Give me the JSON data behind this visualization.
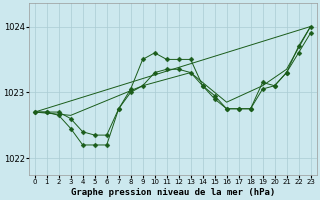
{
  "xlabel": "Graphe pression niveau de la mer (hPa)",
  "ylim": [
    1021.75,
    1024.35
  ],
  "xlim": [
    -0.5,
    23.5
  ],
  "yticks": [
    1022,
    1023,
    1024
  ],
  "xticks": [
    0,
    1,
    2,
    3,
    4,
    5,
    6,
    7,
    8,
    9,
    10,
    11,
    12,
    13,
    14,
    15,
    16,
    17,
    18,
    19,
    20,
    21,
    22,
    23
  ],
  "bg_color": "#cce8ee",
  "grid_color": "#aaccd4",
  "line_color": "#1a5c1a",
  "figwidth": 3.2,
  "figheight": 2.0,
  "dpi": 100,
  "lines": [
    {
      "x": [
        0,
        1,
        2,
        3,
        4,
        5,
        6,
        7,
        8,
        9,
        10,
        11,
        12,
        13,
        14,
        15,
        16,
        17,
        18,
        19,
        20,
        21,
        22,
        23
      ],
      "y": [
        1022.7,
        1022.7,
        1022.65,
        1022.45,
        1022.2,
        1022.2,
        1022.2,
        1022.75,
        1023.05,
        1023.5,
        1023.6,
        1023.5,
        1023.5,
        1023.5,
        1023.1,
        1022.9,
        1022.75,
        1022.75,
        1022.75,
        1023.15,
        1023.1,
        1023.3,
        1023.7,
        1024.0
      ],
      "has_marker": true,
      "markersize": 2.5
    },
    {
      "x": [
        0,
        1,
        2,
        3,
        4,
        5,
        6,
        7,
        8,
        9,
        10,
        11,
        12,
        13,
        14,
        15,
        16,
        17,
        18,
        19,
        20,
        21,
        22,
        23
      ],
      "y": [
        1022.7,
        1022.7,
        1022.7,
        1022.6,
        1022.4,
        1022.35,
        1022.35,
        1022.75,
        1023.0,
        1023.1,
        1023.3,
        1023.35,
        1023.35,
        1023.3,
        1023.1,
        1022.95,
        1022.75,
        1022.75,
        1022.75,
        1023.05,
        1023.1,
        1023.3,
        1023.6,
        1023.9
      ],
      "has_marker": true,
      "markersize": 2.5
    },
    {
      "x": [
        0,
        3,
        9,
        13,
        16,
        19,
        21,
        23
      ],
      "y": [
        1022.7,
        1022.65,
        1023.1,
        1023.3,
        1022.85,
        1023.1,
        1023.35,
        1024.0
      ],
      "has_marker": false,
      "markersize": 0
    },
    {
      "x": [
        0,
        23
      ],
      "y": [
        1022.7,
        1024.0
      ],
      "has_marker": false,
      "markersize": 0
    }
  ]
}
